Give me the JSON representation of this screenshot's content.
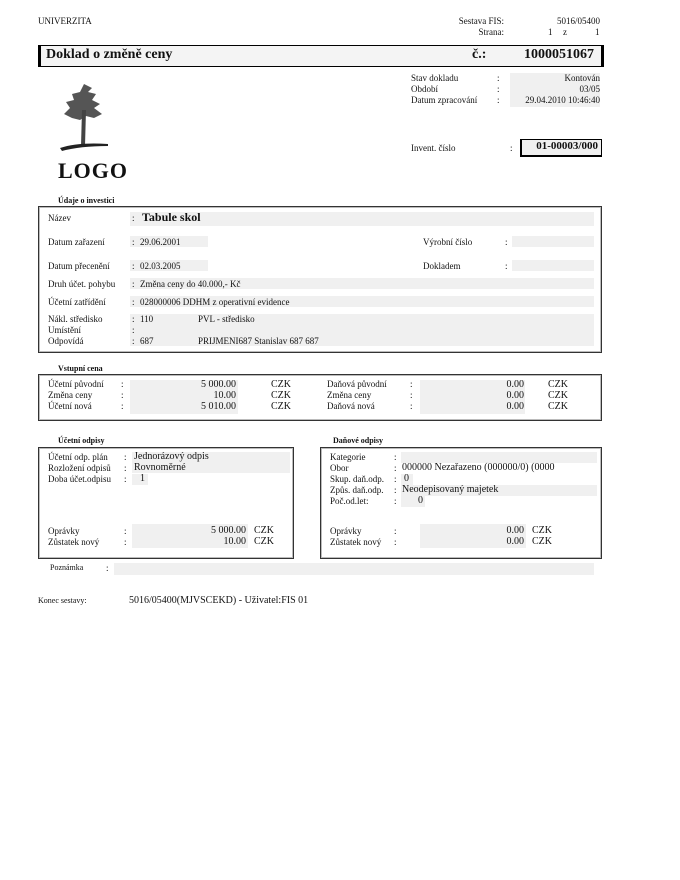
{
  "header": {
    "org": "UNIVERZITA",
    "sestava_label": "Sestava FIS:",
    "sestava_value": "5016/05400",
    "strana_label": "Strana:",
    "page": "1",
    "of": "z",
    "pages": "1"
  },
  "title": {
    "text": "Doklad o změně ceny",
    "number_label": "č.:",
    "number": "1000051067"
  },
  "logo": {
    "text": "LOGO"
  },
  "status": {
    "stav_label": "Stav dokladu",
    "stav_value": "Kontován",
    "obdobi_label": "Období",
    "obdobi_value": "03/05",
    "datum_label": "Datum zpracování",
    "datum_value": "29.04.2010 10:46:40",
    "invent_label": "Invent. číslo",
    "invent_value": "01-00003/000"
  },
  "investice": {
    "section": "Údaje o investici",
    "nazev_label": "Název",
    "nazev": "Tabule skol",
    "zarazeni_label": "Datum zařazení",
    "zarazeni": "29.06.2001",
    "vyrobni_label": "Výrobní číslo",
    "vyrobni": "",
    "preceneni_label": "Datum přecenění",
    "preceneni": "02.03.2005",
    "dokladem_label": "Dokladem",
    "dokladem": "",
    "druh_label": "Druh účet. pohybu",
    "druh": "Změna ceny do 40.000,- Kč",
    "zatrideni_label": "Účetní zatřídění",
    "zatrideni": "028000006 DDHM z operativní evidence",
    "stredisko_label": "Nákl. středisko",
    "stredisko": "110",
    "stredisko_name": "PVL - středisko",
    "umisteni_label": "Umístění",
    "odpovida_label": "Odpovídá",
    "odpovida": "687",
    "odpovida_name": "PRIJMENI687 Stanislav 687 687"
  },
  "vstupni": {
    "section": "Vstupní cena",
    "currency": "CZK",
    "left": [
      {
        "label": "Účetní původní",
        "value": "5 000.00"
      },
      {
        "label": "Změna ceny",
        "value": "10.00"
      },
      {
        "label": "Účetní nová",
        "value": "5 010.00"
      }
    ],
    "right": [
      {
        "label": "Daňová původní",
        "value": "0.00"
      },
      {
        "label": "Změna ceny",
        "value": "0.00"
      },
      {
        "label": "Daňová nová",
        "value": "0.00"
      }
    ]
  },
  "ucetni": {
    "section": "Účetní odpisy",
    "plan_label": "Účetní odp. plán",
    "plan": "Jednorázový odpis",
    "rozlozeni_label": "Rozložení odpisů",
    "rozlozeni": "Rovnoměrné",
    "doba_label": "Doba účet.odpisu",
    "doba": "1",
    "opravky_label": "Oprávky",
    "opravky": "5 000.00",
    "zustatek_label": "Zůstatek nový",
    "zustatek": "10.00",
    "currency": "CZK"
  },
  "danove": {
    "section": "Daňové odpisy",
    "kategorie_label": "Kategorie",
    "kategorie": "",
    "obor_label": "Obor",
    "obor": "000000  Nezařazeno (000000/0) (0000",
    "skup_label": "Skup. daň.odp.",
    "skup": "0",
    "zpus_label": "Způs. daň.odp.",
    "zpus": "Neodepisovaný majetek",
    "poc_label": "Poč.od.let:",
    "poc": "0",
    "opravky_label": "Oprávky",
    "opravky": "0.00",
    "zustatek_label": "Zůstatek nový",
    "zustatek": "0.00",
    "currency": "CZK"
  },
  "poznamka": {
    "label": "Poznámka",
    "value": ""
  },
  "footer": {
    "label": "Konec sestavy:",
    "value": "5016/05400(MJVSCEKD) - Uživatel:FIS  01"
  },
  "colon": ":"
}
